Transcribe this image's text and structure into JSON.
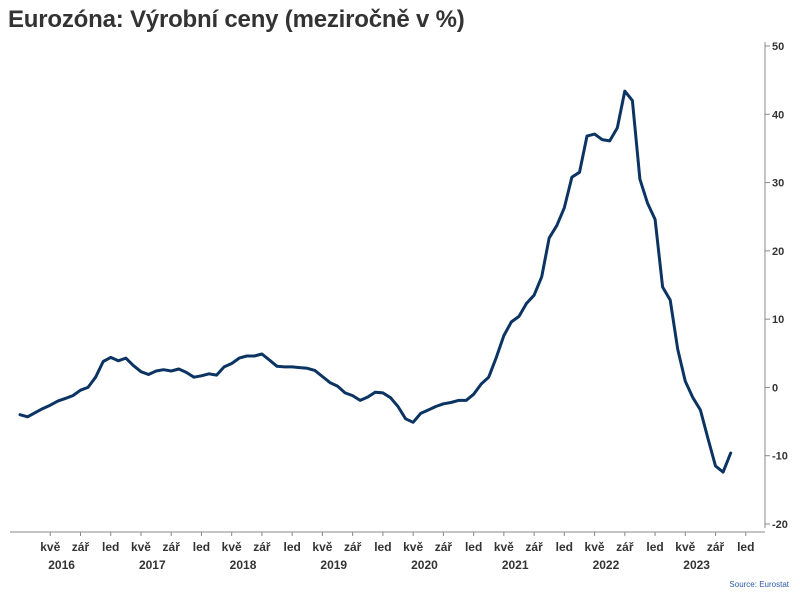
{
  "title": "Eurozóna: Výrobní ceny (meziročně v %)",
  "source": "Source: Eurostat",
  "colors": {
    "line": "#0b3463",
    "text": "#333333",
    "axis": "#888888",
    "source": "#2b5aa6"
  },
  "chart_data": {
    "type": "line",
    "title": "Eurozóna: Výrobní ceny (meziročně v %)",
    "xlabel": "",
    "ylabel": "",
    "ylim": [
      -20,
      50
    ],
    "yticks": [
      50,
      40,
      30,
      20,
      10,
      0,
      -10,
      -20
    ],
    "yaxis_position": "right",
    "grid": false,
    "legend": "none",
    "x_start": "2016-01",
    "x_ticks": [
      {
        "label": "kvě",
        "month": 4
      },
      {
        "label": "zář",
        "month": 8
      },
      {
        "label": "led",
        "month": 12
      },
      {
        "label": "kvě",
        "month": 16
      },
      {
        "label": "zář",
        "month": 20
      },
      {
        "label": "led",
        "month": 24
      },
      {
        "label": "kvě",
        "month": 28
      },
      {
        "label": "zář",
        "month": 32
      },
      {
        "label": "led",
        "month": 36
      },
      {
        "label": "kvě",
        "month": 40
      },
      {
        "label": "zář",
        "month": 44
      },
      {
        "label": "led",
        "month": 48
      },
      {
        "label": "kvě",
        "month": 52
      },
      {
        "label": "zář",
        "month": 56
      },
      {
        "label": "led",
        "month": 60
      },
      {
        "label": "kvě",
        "month": 64
      },
      {
        "label": "zář",
        "month": 68
      },
      {
        "label": "led",
        "month": 72
      },
      {
        "label": "kvě",
        "month": 76
      },
      {
        "label": "zář",
        "month": 80
      },
      {
        "label": "led",
        "month": 84
      },
      {
        "label": "kvě",
        "month": 88
      },
      {
        "label": "zář",
        "month": 92
      },
      {
        "label": "led",
        "month": 96
      }
    ],
    "x_year_labels": [
      {
        "label": "2016",
        "month": 4
      },
      {
        "label": "2017",
        "month": 16
      },
      {
        "label": "2018",
        "month": 28
      },
      {
        "label": "2019",
        "month": 40
      },
      {
        "label": "2020",
        "month": 52
      },
      {
        "label": "2021",
        "month": 64
      },
      {
        "label": "2022",
        "month": 76
      },
      {
        "label": "2023",
        "month": 88
      }
    ],
    "series": [
      {
        "values": [
          -4.0,
          -4.3,
          -3.7,
          -3.1,
          -2.6,
          -2.0,
          -1.6,
          -1.2,
          -0.4,
          0.0,
          1.5,
          3.8,
          4.4,
          3.9,
          4.3,
          3.2,
          2.3,
          1.9,
          2.4,
          2.6,
          2.4,
          2.7,
          2.2,
          1.5,
          1.7,
          2.0,
          1.8,
          3.0,
          3.5,
          4.3,
          4.6,
          4.6,
          4.9,
          4.0,
          3.1,
          3.0,
          3.0,
          2.9,
          2.8,
          2.5,
          1.6,
          0.7,
          0.2,
          -0.8,
          -1.2,
          -1.9,
          -1.4,
          -0.7,
          -0.8,
          -1.5,
          -2.8,
          -4.6,
          -5.1,
          -3.8,
          -3.3,
          -2.8,
          -2.4,
          -2.2,
          -1.9,
          -1.9,
          -1.0,
          0.5,
          1.5,
          4.4,
          7.6,
          9.6,
          10.4,
          12.3,
          13.5,
          16.2,
          21.9,
          23.7,
          26.3,
          30.8,
          31.5,
          36.8,
          37.1,
          36.3,
          36.1,
          38.0,
          43.4,
          42.0,
          30.5,
          27.0,
          24.6,
          14.7,
          12.8,
          5.6,
          0.9,
          -1.5,
          -3.3,
          -7.5,
          -11.5,
          -12.4,
          -9.6
        ]
      }
    ]
  }
}
